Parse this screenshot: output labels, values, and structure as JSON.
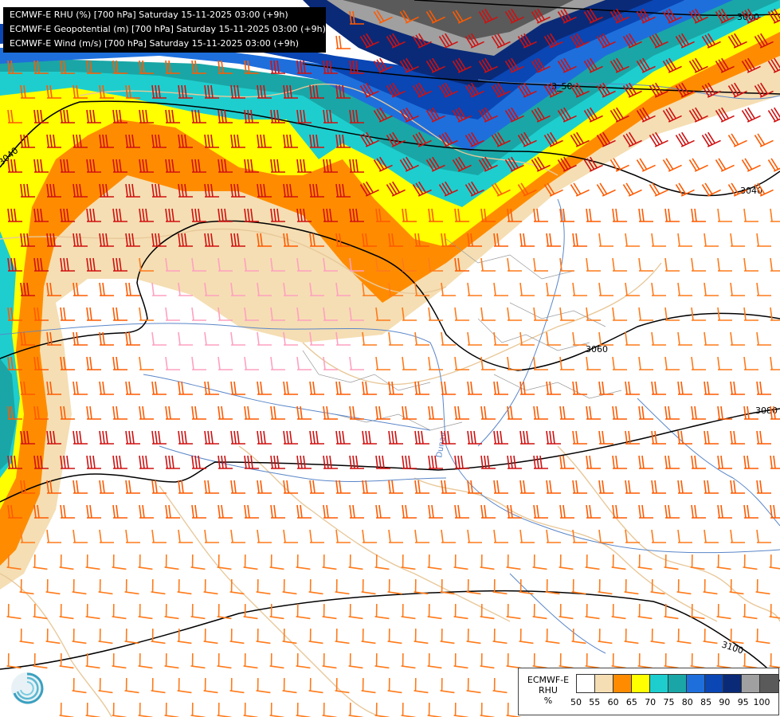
{
  "header": {
    "lines": [
      "ECMWF-E RHU (%) [700 hPa] Saturday 15-11-2025 03:00 (+9h)",
      "ECMWF-E Geopotential (m) [700 hPa] Saturday 15-11-2025 03:00 (+9h)",
      "ECMWF-E Wind (m/s) [700 hPa] Saturday 15-11-2025 03:00 (+9h)"
    ]
  },
  "geopotential_contours": {
    "units": "m",
    "labels": [
      "3000",
      "3040",
      "3040",
      "3060",
      "3080",
      "3100"
    ],
    "partial_label": "3_50"
  },
  "map_labels": {
    "river": "Dunav"
  },
  "legend": {
    "model": "ECMWF-E",
    "variable": "RHU",
    "unit": "%",
    "ticks": [
      "50",
      "55",
      "60",
      "65",
      "70",
      "75",
      "80",
      "85",
      "90",
      "95",
      "100"
    ],
    "colors": [
      "#ffffff",
      "#f5deb3",
      "#ff8c00",
      "#ffff00",
      "#1ecece",
      "#1aa6a6",
      "#1e6fdc",
      "#0a46b4",
      "#0a2a78",
      "#a0a0a0",
      "#5a5a5a"
    ]
  },
  "palette": {
    "contour": "#000000",
    "border": "#e8c89a",
    "river": "#5a86c8",
    "wind_colors": [
      "#ffa0c0",
      "#ff7a1a",
      "#ff5a00",
      "#d01010",
      "#b00000"
    ]
  },
  "icons": {
    "logo": "ecmwf-swirl-icon"
  }
}
